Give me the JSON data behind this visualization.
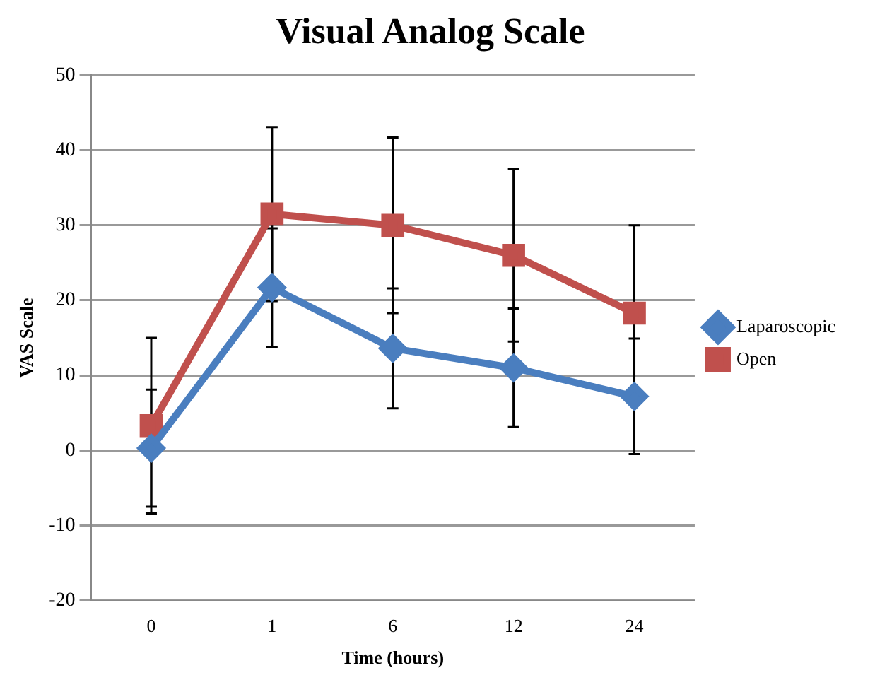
{
  "chart_data": {
    "type": "line",
    "title": "Visual Analog Scale",
    "xlabel": "Time (hours)",
    "ylabel": "VAS Scale",
    "categories": [
      "0",
      "1",
      "6",
      "12",
      "24"
    ],
    "series": [
      {
        "name": "Laparoscopic",
        "color": "#4a7ebf",
        "marker": "diamond",
        "values": [
          0.3,
          21.7,
          13.6,
          11,
          7.2
        ],
        "errors": [
          7.8,
          7.9,
          8,
          7.9,
          7.7
        ]
      },
      {
        "name": "Open",
        "color": "#c0504d",
        "marker": "square",
        "values": [
          3.3,
          31.5,
          30,
          26,
          18.3
        ],
        "errors": [
          11.7,
          11.6,
          11.7,
          11.5,
          11.7
        ]
      }
    ],
    "ylim": [
      -20,
      50
    ],
    "yticks": [
      -20,
      -10,
      0,
      10,
      20,
      30,
      40,
      50
    ],
    "grid": "y",
    "legend": "right",
    "line_style": "solid"
  }
}
